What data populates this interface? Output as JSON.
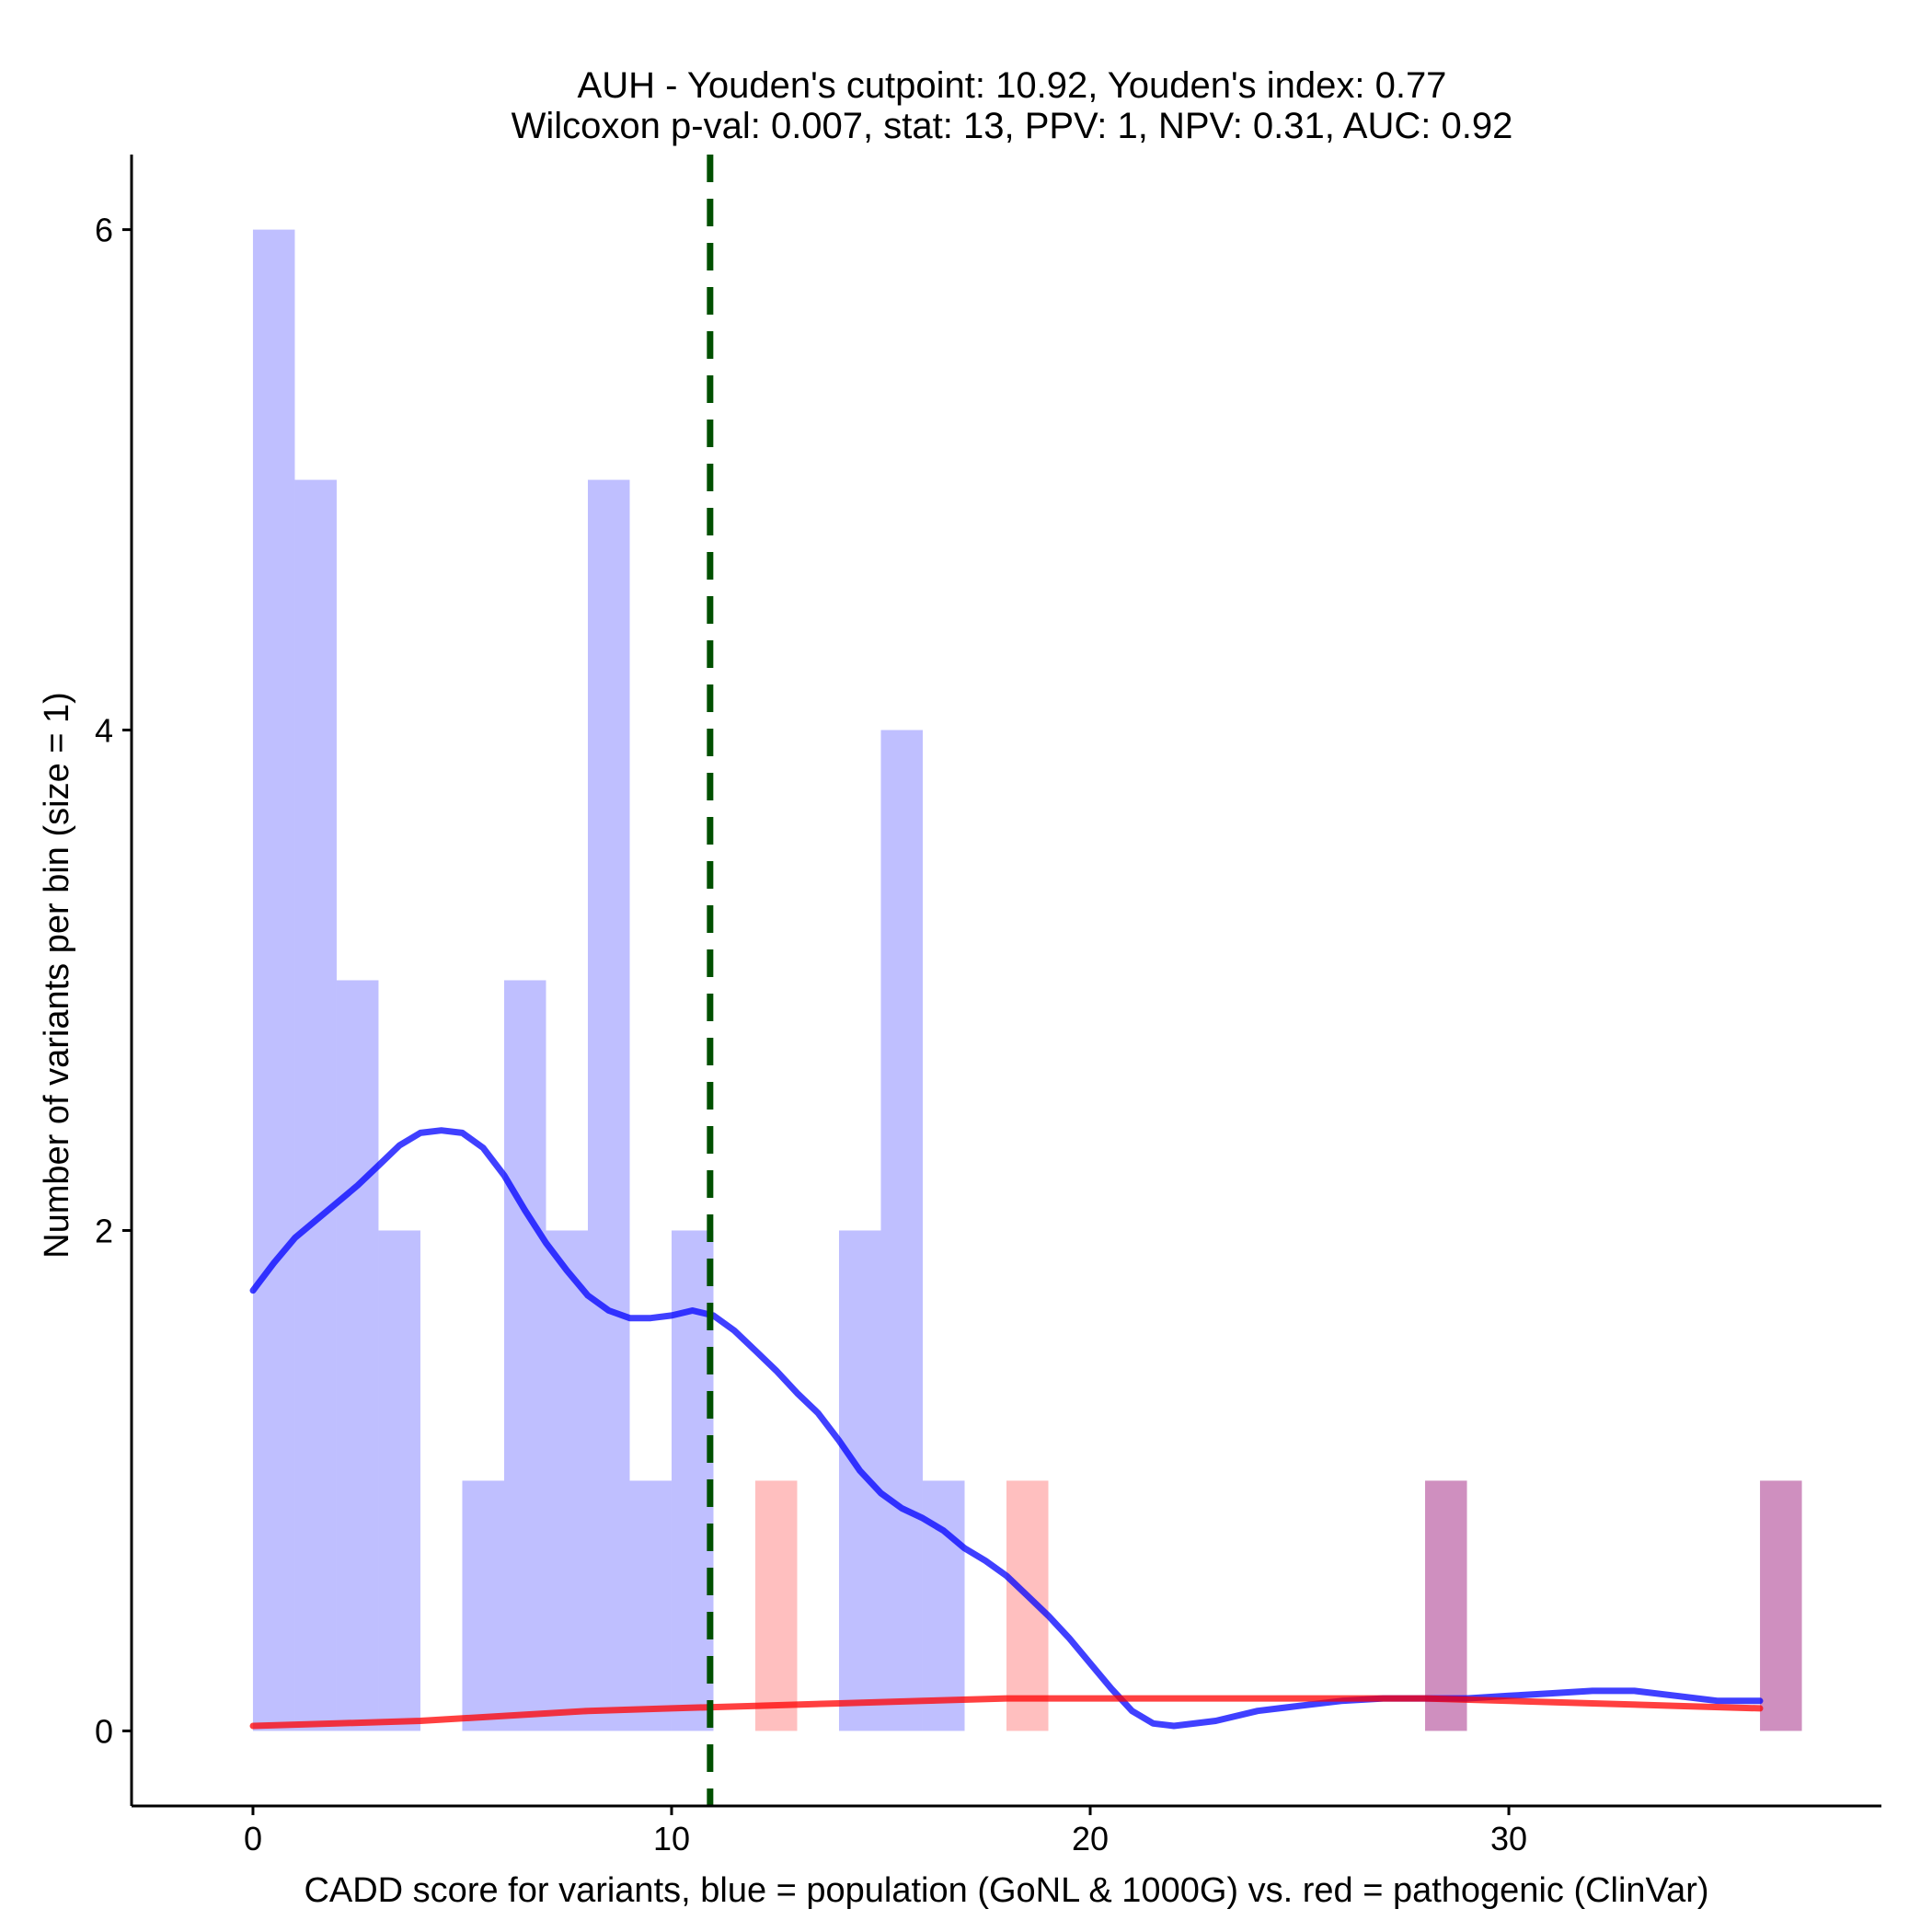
{
  "chart_data": {
    "type": "bar",
    "title_lines": [
      "AUH - Youden's cutpoint: 10.92, Youden's index: 0.77",
      "Wilcoxon p-val: 0.007, stat: 13, PPV: 1, NPV: 0.31, AUC: 0.92"
    ],
    "xlabel": "CADD score for variants, blue = population (GoNL & 1000G) vs. red = pathogenic (ClinVar)",
    "ylabel": "Number of variants per bin (size = 1)",
    "xlim": [
      -2.9,
      38.9
    ],
    "ylim": [
      -0.3,
      6.3
    ],
    "x_ticks": [
      0,
      10,
      20,
      30
    ],
    "y_ticks": [
      0,
      2,
      4,
      6
    ],
    "bin_size": 1,
    "cutpoint": 10.92,
    "colors": {
      "population": "#0000ff",
      "pathogenic": "#ff0000",
      "cutpoint_line": "#005000"
    },
    "histograms": [
      {
        "name": "population",
        "bins": [
          {
            "start": 0,
            "count": 6
          },
          {
            "start": 1,
            "count": 5
          },
          {
            "start": 2,
            "count": 3
          },
          {
            "start": 3,
            "count": 2
          },
          {
            "start": 5,
            "count": 1
          },
          {
            "start": 6,
            "count": 3
          },
          {
            "start": 7,
            "count": 2
          },
          {
            "start": 8,
            "count": 5
          },
          {
            "start": 9,
            "count": 1
          },
          {
            "start": 10,
            "count": 2
          },
          {
            "start": 14,
            "count": 2
          },
          {
            "start": 15,
            "count": 4
          },
          {
            "start": 16,
            "count": 1
          },
          {
            "start": 28,
            "count": 1
          },
          {
            "start": 36,
            "count": 1
          }
        ]
      },
      {
        "name": "pathogenic",
        "bins": [
          {
            "start": 12,
            "count": 1
          },
          {
            "start": 18,
            "count": 1
          },
          {
            "start": 28,
            "count": 1
          },
          {
            "start": 36,
            "count": 1
          }
        ]
      }
    ],
    "density_curves": [
      {
        "name": "population",
        "points": [
          [
            0,
            1.76
          ],
          [
            0.5,
            1.87
          ],
          [
            1,
            1.97
          ],
          [
            1.5,
            2.04
          ],
          [
            2,
            2.11
          ],
          [
            2.5,
            2.18
          ],
          [
            3,
            2.26
          ],
          [
            3.5,
            2.34
          ],
          [
            4,
            2.39
          ],
          [
            4.5,
            2.4
          ],
          [
            5,
            2.39
          ],
          [
            5.5,
            2.33
          ],
          [
            6,
            2.22
          ],
          [
            6.5,
            2.08
          ],
          [
            7,
            1.95
          ],
          [
            7.5,
            1.84
          ],
          [
            8,
            1.74
          ],
          [
            8.5,
            1.68
          ],
          [
            9,
            1.65
          ],
          [
            9.5,
            1.65
          ],
          [
            10,
            1.66
          ],
          [
            10.5,
            1.68
          ],
          [
            11,
            1.66
          ],
          [
            11.5,
            1.6
          ],
          [
            12,
            1.52
          ],
          [
            12.5,
            1.44
          ],
          [
            13,
            1.35
          ],
          [
            13.5,
            1.27
          ],
          [
            14,
            1.16
          ],
          [
            14.5,
            1.04
          ],
          [
            15,
            0.95
          ],
          [
            15.5,
            0.89
          ],
          [
            16,
            0.85
          ],
          [
            16.5,
            0.8
          ],
          [
            17,
            0.73
          ],
          [
            17.5,
            0.68
          ],
          [
            18,
            0.62
          ],
          [
            18.5,
            0.54
          ],
          [
            19,
            0.46
          ],
          [
            19.5,
            0.37
          ],
          [
            20,
            0.27
          ],
          [
            20.5,
            0.17
          ],
          [
            21,
            0.08
          ],
          [
            21.5,
            0.03
          ],
          [
            22,
            0.02
          ],
          [
            23,
            0.04
          ],
          [
            24,
            0.08
          ],
          [
            25,
            0.1
          ],
          [
            26,
            0.12
          ],
          [
            27,
            0.13
          ],
          [
            28,
            0.13
          ],
          [
            29,
            0.13
          ],
          [
            30,
            0.14
          ],
          [
            31,
            0.15
          ],
          [
            32,
            0.16
          ],
          [
            33,
            0.16
          ],
          [
            34,
            0.14
          ],
          [
            35,
            0.12
          ],
          [
            36,
            0.12
          ]
        ]
      },
      {
        "name": "pathogenic",
        "points": [
          [
            0,
            0.02
          ],
          [
            2,
            0.03
          ],
          [
            4,
            0.04
          ],
          [
            6,
            0.06
          ],
          [
            8,
            0.08
          ],
          [
            10,
            0.09
          ],
          [
            12,
            0.1
          ],
          [
            14,
            0.11
          ],
          [
            16,
            0.12
          ],
          [
            18,
            0.13
          ],
          [
            20,
            0.13
          ],
          [
            22,
            0.13
          ],
          [
            24,
            0.13
          ],
          [
            26,
            0.13
          ],
          [
            28,
            0.13
          ],
          [
            30,
            0.12
          ],
          [
            32,
            0.11
          ],
          [
            34,
            0.1
          ],
          [
            36,
            0.09
          ]
        ]
      }
    ]
  }
}
